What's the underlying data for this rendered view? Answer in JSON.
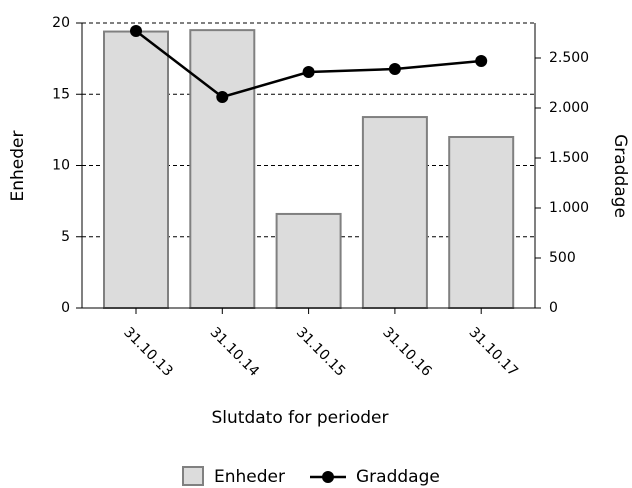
{
  "chart_data": {
    "type": "bar",
    "categories": [
      "31.10.13",
      "31.10.14",
      "31.10.15",
      "31.10.16",
      "31.10.17"
    ],
    "series": [
      {
        "name": "Enheder",
        "type": "bar",
        "color": "#dcdcdc",
        "values": [
          19.4,
          19.5,
          6.6,
          13.4,
          12.0
        ]
      },
      {
        "name": "Graddage",
        "type": "line",
        "axis": "y2",
        "color": "#000000",
        "values": [
          2770,
          2110,
          2360,
          2390,
          2470
        ]
      }
    ],
    "xlabel": "Slutdato for perioder",
    "ylabel": "Enheder",
    "y2label": "Graddage",
    "ylim": [
      0,
      20
    ],
    "yticks": [
      0,
      5,
      10,
      15,
      20
    ],
    "y2lim": [
      0,
      2850
    ],
    "y2ticks": [
      0,
      500,
      {
        "value": 1000,
        "label": "1.000"
      },
      {
        "value": 1500,
        "label": "1.500"
      },
      {
        "value": 2000,
        "label": "2.000"
      },
      {
        "value": 2500,
        "label": "2.500"
      }
    ],
    "grid": true,
    "legend": "bottom"
  }
}
